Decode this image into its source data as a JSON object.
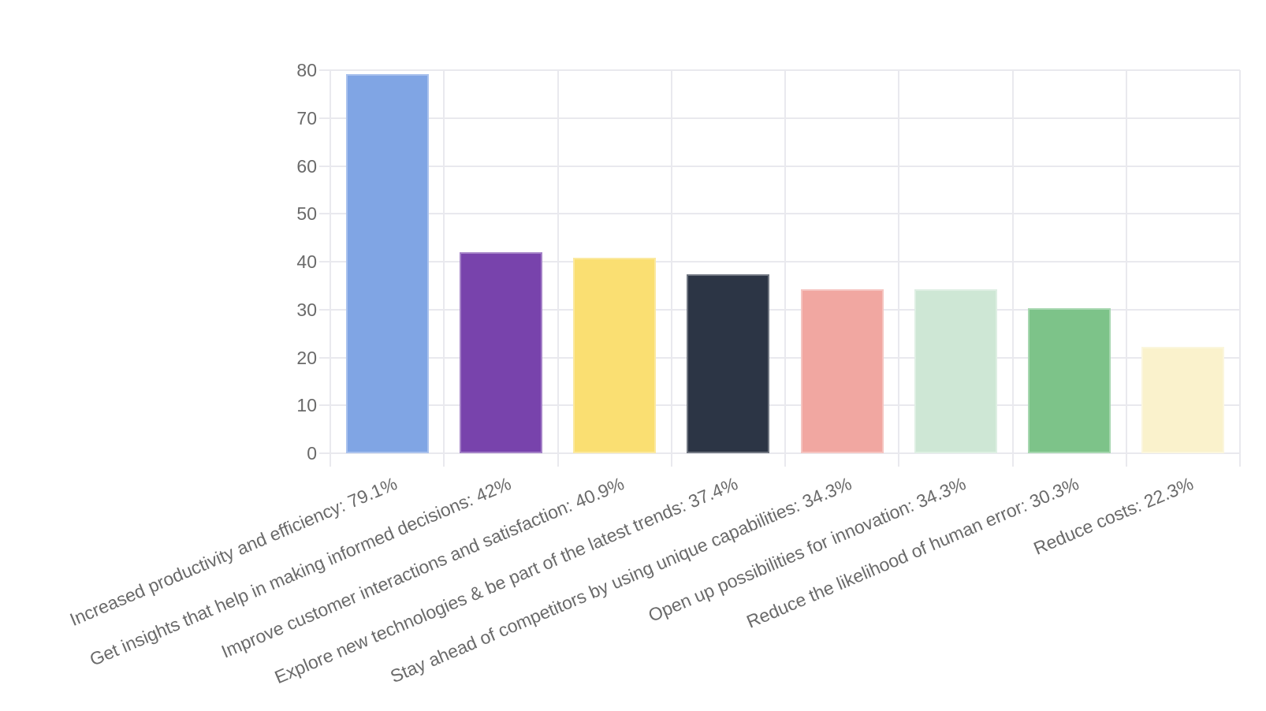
{
  "chart_data": {
    "type": "bar",
    "title": "",
    "xlabel": "",
    "ylabel": "",
    "categories": [
      "Increased productivity and efficiency: 79.1%",
      "Get insights that help in making informed decisions: 42%",
      "Improve customer interactions and satisfaction: 40.9%",
      "Explore new technologies & be part of the latest trends: 37.4%",
      "Stay ahead of competitors by using unique capabilities: 34.3%",
      "Open up possibilities for innovation: 34.3%",
      "Reduce the likelihood of human error: 30.3%",
      "Reduce costs: 22.3%"
    ],
    "values": [
      79.1,
      42,
      40.9,
      37.4,
      34.3,
      34.3,
      30.3,
      22.3
    ],
    "bar_colors": [
      "#80A5E4",
      "#7843AC",
      "#FADF72",
      "#2C3545",
      "#F1A7A1",
      "#CEE7D5",
      "#7DC389",
      "#FAF2CC"
    ],
    "ylim": [
      0,
      80
    ],
    "yticks": [
      0,
      10,
      20,
      30,
      40,
      50,
      60,
      70,
      80
    ],
    "grid": true,
    "legend": "none",
    "x_label_rotation_deg": -23,
    "axis_text_color": "#6a6a6a",
    "grid_color": "#e9e9ee",
    "background_color": "#ffffff"
  }
}
